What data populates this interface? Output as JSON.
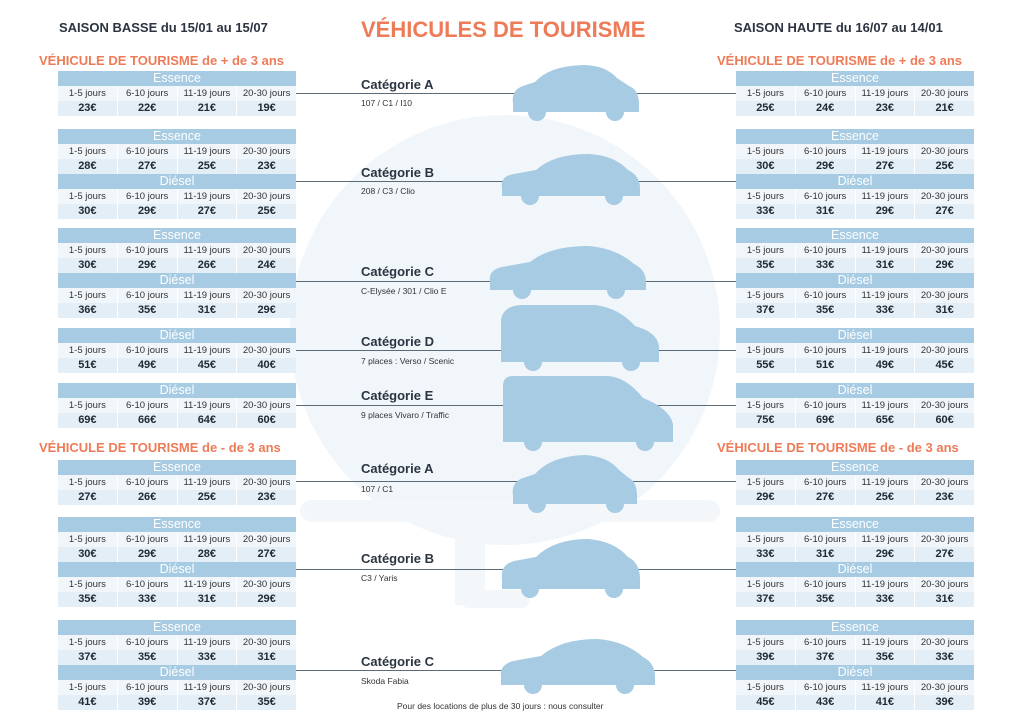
{
  "header": {
    "low_season": "SAISON BASSE du 15/01 au 15/07",
    "title": "VÉHICULES DE TOURISME",
    "high_season": "SAISON HAUTE du 16/07 au 14/01"
  },
  "sections": {
    "over3": "VÉHICULE DE TOURISME de + de 3 ans",
    "under3": "VÉHICULE DE TOURISME de - de 3 ans"
  },
  "durations": [
    "1-5 jours",
    "6-10 jours",
    "11-19 jours",
    "20-30 jours"
  ],
  "fuels": {
    "essence": "Essence",
    "diesel": "Diésel"
  },
  "categories": [
    {
      "name": "Catégorie A",
      "models": "107 / C1 / I10"
    },
    {
      "name": "Catégorie B",
      "models": "208 / C3 / Clio"
    },
    {
      "name": "Catégorie C",
      "models": "C-Elysée / 301 / Clio E"
    },
    {
      "name": "Catégorie D",
      "models": "7 places : Verso / Scenic"
    },
    {
      "name": "Catégorie E",
      "models": "9 places Vivaro / Traffic"
    },
    {
      "name": "Catégorie A",
      "models": "107 / C1"
    },
    {
      "name": "Catégorie B",
      "models": "C3 / Yaris"
    },
    {
      "name": "Catégorie C",
      "models": "Skoda Fabia"
    }
  ],
  "low": {
    "A1_ess": [
      "23€",
      "22€",
      "21€",
      "19€"
    ],
    "B1_ess": [
      "28€",
      "27€",
      "25€",
      "23€"
    ],
    "B1_die": [
      "30€",
      "29€",
      "27€",
      "25€"
    ],
    "C1_ess": [
      "30€",
      "29€",
      "26€",
      "24€"
    ],
    "C1_die": [
      "36€",
      "35€",
      "31€",
      "29€"
    ],
    "D1_die": [
      "51€",
      "49€",
      "45€",
      "40€"
    ],
    "E1_die": [
      "69€",
      "66€",
      "64€",
      "60€"
    ],
    "A2_ess": [
      "27€",
      "26€",
      "25€",
      "23€"
    ],
    "B2_ess": [
      "30€",
      "29€",
      "28€",
      "27€"
    ],
    "B2_die": [
      "35€",
      "33€",
      "31€",
      "29€"
    ],
    "C2_ess": [
      "37€",
      "35€",
      "33€",
      "31€"
    ],
    "C2_die": [
      "41€",
      "39€",
      "37€",
      "35€"
    ]
  },
  "high": {
    "A1_ess": [
      "25€",
      "24€",
      "23€",
      "21€"
    ],
    "B1_ess": [
      "30€",
      "29€",
      "27€",
      "25€"
    ],
    "B1_die": [
      "33€",
      "31€",
      "29€",
      "27€"
    ],
    "C1_ess": [
      "35€",
      "33€",
      "31€",
      "29€"
    ],
    "C1_die": [
      "37€",
      "35€",
      "33€",
      "31€"
    ],
    "D1_die": [
      "55€",
      "51€",
      "49€",
      "45€"
    ],
    "E1_die": [
      "75€",
      "69€",
      "65€",
      "60€"
    ],
    "A2_ess": [
      "29€",
      "27€",
      "25€",
      "23€"
    ],
    "B2_ess": [
      "33€",
      "31€",
      "29€",
      "27€"
    ],
    "B2_die": [
      "37€",
      "35€",
      "33€",
      "31€"
    ],
    "C2_ess": [
      "39€",
      "37€",
      "35€",
      "33€"
    ],
    "C2_die": [
      "45€",
      "43€",
      "41€",
      "39€"
    ]
  },
  "footer_note": "Pour des locations de plus de 30 jours : nous consulter",
  "colors": {
    "accent": "#ee7b57",
    "table_header": "#a6cbe3",
    "car": "#a6cbe3",
    "dark_text": "#2b3440"
  }
}
